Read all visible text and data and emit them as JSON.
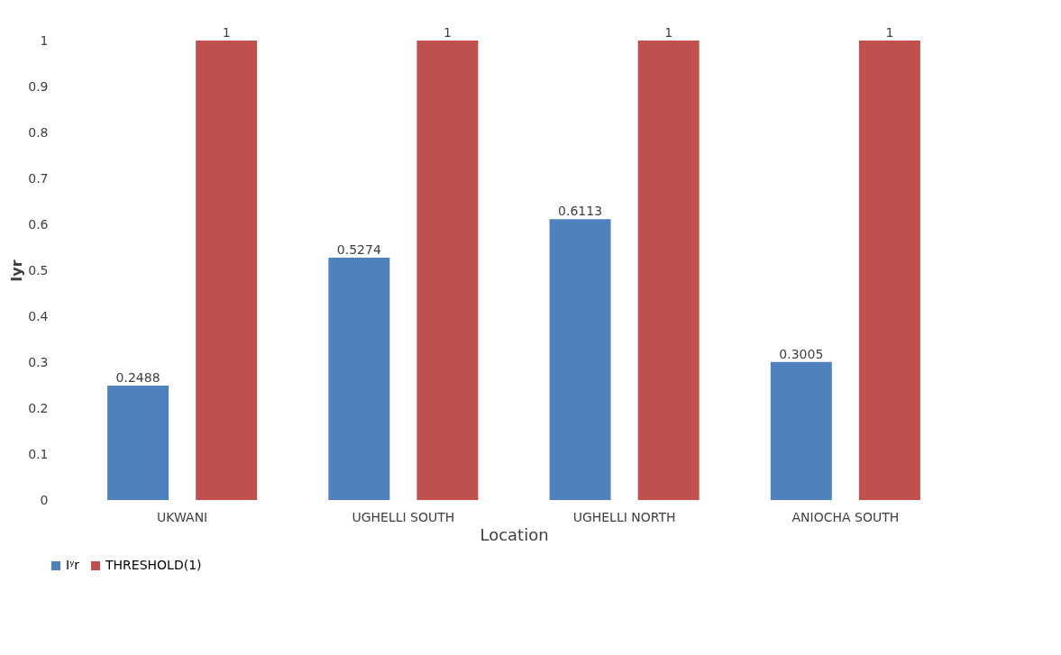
{
  "chart_data": {
    "type": "bar",
    "xlabel": "Location",
    "ylabel": "Iyr",
    "categories": [
      "UKWANI",
      "UGHELLI SOUTH",
      "UGHELLI NORTH",
      "ANIOCHA SOUTH"
    ],
    "series": [
      {
        "name": "Iʸr",
        "color": "#4f81bd",
        "values": [
          0.2488,
          0.5274,
          0.6113,
          0.3005
        ]
      },
      {
        "name": "THRESHOLD(1)",
        "color": "#c0504d",
        "values": [
          1,
          1,
          1,
          1
        ]
      }
    ],
    "ylim": [
      0,
      1
    ],
    "yticks": [
      0,
      0.1,
      0.2,
      0.3,
      0.4,
      0.5,
      0.6,
      0.7,
      0.8,
      0.9,
      1
    ],
    "data_labels": true,
    "legend": "bottom",
    "grid": false
  }
}
